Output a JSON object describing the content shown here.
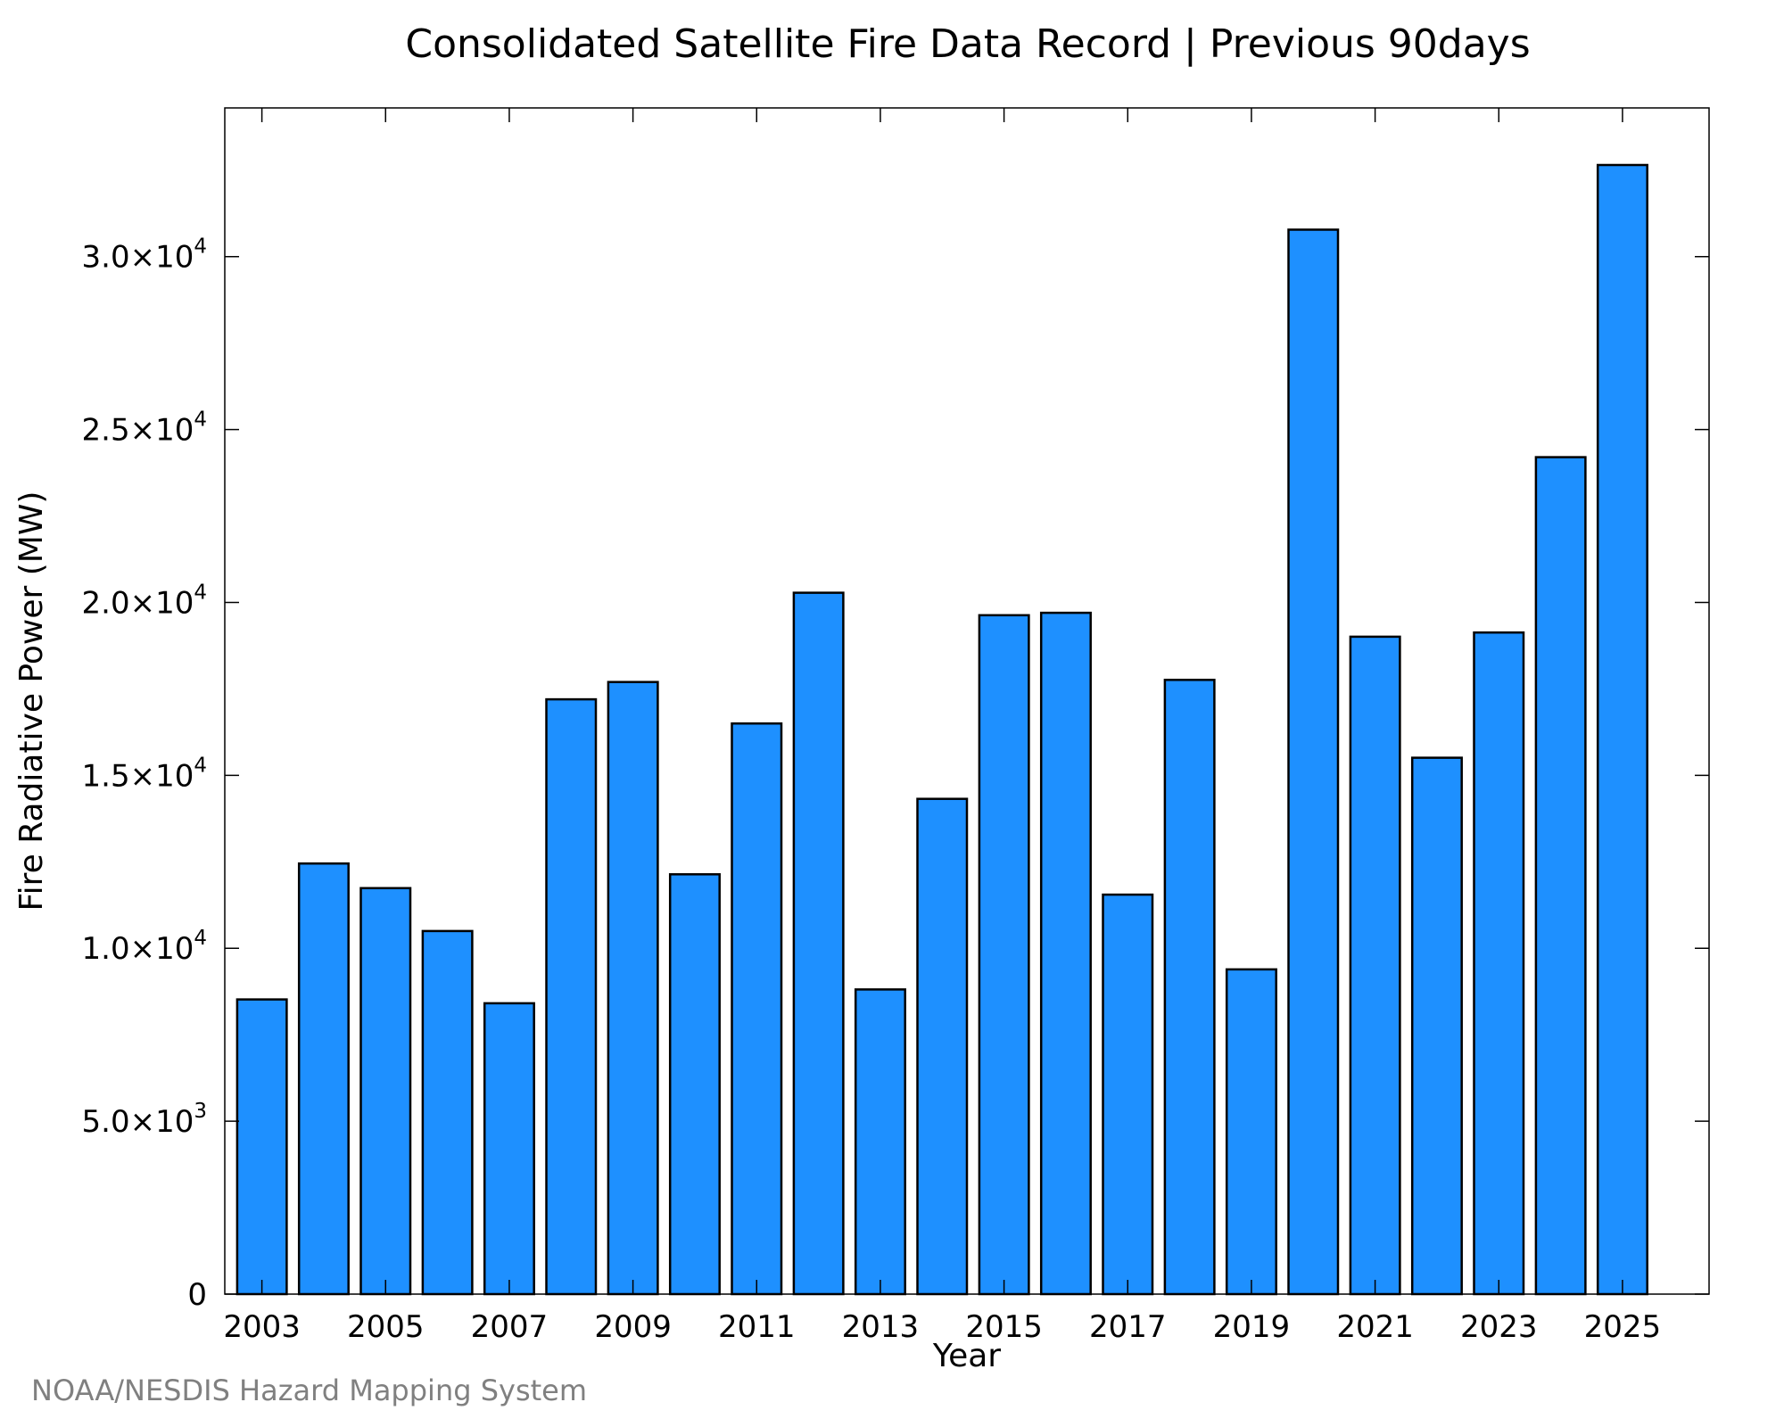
{
  "chart_data": {
    "type": "bar",
    "title": "Consolidated Satellite Fire Data Record | Previous 90days",
    "xlabel": "Year",
    "ylabel": "Fire Radiative Power (MW)",
    "categories": [
      "2003",
      "2004",
      "2005",
      "2006",
      "2007",
      "2008",
      "2009",
      "2010",
      "2011",
      "2012",
      "2013",
      "2014",
      "2015",
      "2016",
      "2017",
      "2018",
      "2019",
      "2020",
      "2021",
      "2022",
      "2023",
      "2024",
      "2025"
    ],
    "values": [
      8520,
      12450,
      11740,
      10500,
      8410,
      17200,
      17700,
      12140,
      16500,
      20280,
      8810,
      14320,
      19630,
      19700,
      11550,
      17760,
      9390,
      30780,
      19010,
      15510,
      19130,
      24200,
      32650
    ],
    "xlim": [
      2002.4,
      2026.4
    ],
    "ylim": [
      0,
      34300
    ],
    "x_ticks": [
      {
        "value": 2003,
        "label": "2003"
      },
      {
        "value": 2005,
        "label": "2005"
      },
      {
        "value": 2007,
        "label": "2007"
      },
      {
        "value": 2009,
        "label": "2009"
      },
      {
        "value": 2011,
        "label": "2011"
      },
      {
        "value": 2013,
        "label": "2013"
      },
      {
        "value": 2015,
        "label": "2015"
      },
      {
        "value": 2017,
        "label": "2017"
      },
      {
        "value": 2019,
        "label": "2019"
      },
      {
        "value": 2021,
        "label": "2021"
      },
      {
        "value": 2023,
        "label": "2023"
      },
      {
        "value": 2025,
        "label": "2025"
      }
    ],
    "y_ticks": [
      {
        "value": 0,
        "mantissa": "0",
        "exponent": ""
      },
      {
        "value": 5000,
        "mantissa": "5.0×10",
        "exponent": "3"
      },
      {
        "value": 10000,
        "mantissa": "1.0×10",
        "exponent": "4"
      },
      {
        "value": 15000,
        "mantissa": "1.5×10",
        "exponent": "4"
      },
      {
        "value": 20000,
        "mantissa": "2.0×10",
        "exponent": "4"
      },
      {
        "value": 25000,
        "mantissa": "2.5×10",
        "exponent": "4"
      },
      {
        "value": 30000,
        "mantissa": "3.0×10",
        "exponent": "4"
      }
    ],
    "grid": false,
    "legend": "none",
    "bar_color": "#1e90ff",
    "bar_edge_color": "#000000"
  },
  "credit": "NOAA/NESDIS Hazard Mapping System"
}
